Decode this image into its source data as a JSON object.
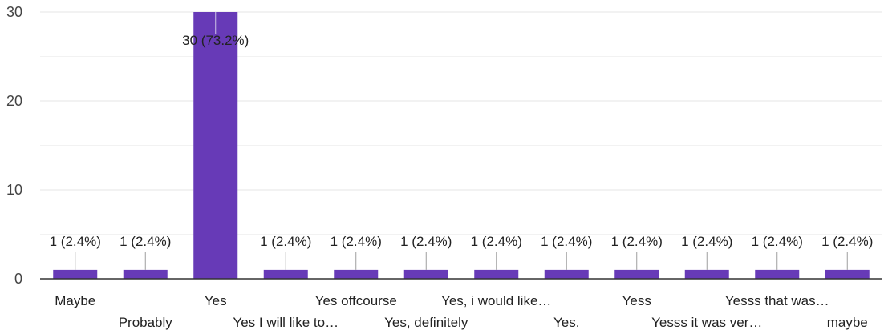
{
  "chart_data": {
    "type": "bar",
    "categories": [
      "Maybe",
      "Probably",
      "Yes",
      "Yes I will like to…",
      "Yes offcourse",
      "Yes, definitely",
      "Yes, i would like…",
      "Yes.",
      "Yess",
      "Yesss it was ver…",
      "Yesss that was…",
      "maybe"
    ],
    "values": [
      1,
      1,
      30,
      1,
      1,
      1,
      1,
      1,
      1,
      1,
      1,
      1
    ],
    "data_labels": [
      "1 (2.4%)",
      "1 (2.4%)",
      "30 (73.2%)",
      "1 (2.4%)",
      "1 (2.4%)",
      "1 (2.4%)",
      "1 (2.4%)",
      "1 (2.4%)",
      "1 (2.4%)",
      "1 (2.4%)",
      "1 (2.4%)",
      "1 (2.4%)"
    ],
    "yticks": [
      "0",
      "10",
      "20",
      "30"
    ],
    "ylim": [
      0,
      30
    ],
    "grid": true,
    "bar_color": "#673ab7"
  }
}
